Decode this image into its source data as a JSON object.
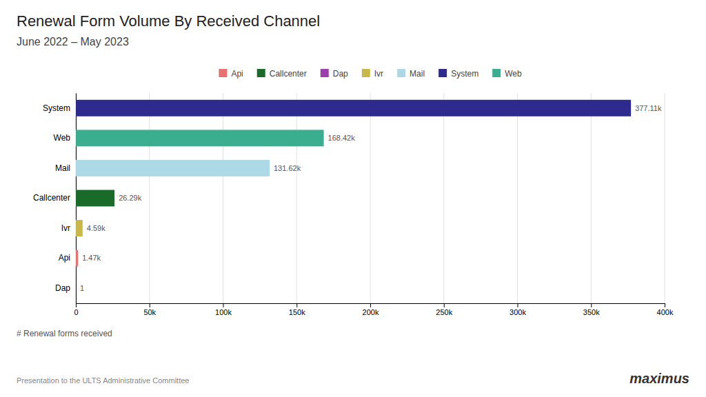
{
  "chart_data": {
    "type": "bar",
    "title": "Renewal Form Volume By Received Channel",
    "subtitle": "June 2022 – May 2023",
    "xlabel": "# Renewal forms received",
    "annotations": [
      "Presentation to the ULTS Administrative Committee",
      "maximus"
    ],
    "orientation": "horizontal",
    "categories": [
      "System",
      "Web",
      "Mail",
      "Callcenter",
      "Ivr",
      "Api",
      "Dap"
    ],
    "series": [
      {
        "name": "Api",
        "color": "#E87070",
        "values": [
          null,
          null,
          null,
          null,
          null,
          1470,
          null
        ],
        "value_labels": [
          null,
          null,
          null,
          null,
          null,
          "1.47k",
          null
        ]
      },
      {
        "name": "Callcenter",
        "color": "#1A6B2A",
        "values": [
          null,
          null,
          null,
          26290,
          null,
          null,
          null
        ],
        "value_labels": [
          null,
          null,
          null,
          "26.29k",
          null,
          null,
          null
        ]
      },
      {
        "name": "Dap",
        "color": "#9B3FAA",
        "values": [
          null,
          null,
          null,
          null,
          null,
          null,
          1
        ],
        "value_labels": [
          null,
          null,
          null,
          null,
          null,
          null,
          "1"
        ]
      },
      {
        "name": "Ivr",
        "color": "#C8B84A",
        "values": [
          null,
          null,
          null,
          null,
          4590,
          null,
          null
        ],
        "value_labels": [
          null,
          null,
          null,
          null,
          "4.59k",
          null,
          null
        ]
      },
      {
        "name": "Mail",
        "color": "#ADD8E6",
        "values": [
          null,
          null,
          131620,
          null,
          null,
          null,
          null
        ],
        "value_labels": [
          null,
          null,
          "131.62k",
          null,
          null,
          null,
          null
        ]
      },
      {
        "name": "System",
        "color": "#2E2B8E",
        "values": [
          377110,
          null,
          null,
          null,
          null,
          null,
          null
        ],
        "value_labels": [
          "377.11k",
          null,
          null,
          null,
          null,
          null,
          null
        ]
      },
      {
        "name": "Web",
        "color": "#3BAE8F",
        "values": [
          null,
          168420,
          null,
          null,
          null,
          null,
          null
        ],
        "value_labels": [
          null,
          "168.42k",
          null,
          null,
          null,
          null,
          null
        ]
      }
    ],
    "xlim": [
      0,
      400000
    ],
    "xticks": [
      0,
      {
        "value": 50000,
        "label": "50k"
      },
      {
        "value": 100000,
        "label": "100k"
      },
      {
        "value": 150000,
        "label": "150k"
      },
      {
        "value": 200000,
        "label": "200k"
      },
      {
        "value": 250000,
        "label": "250k"
      },
      {
        "value": 300000,
        "label": "300k"
      },
      {
        "value": 350000,
        "label": "350k"
      },
      {
        "value": 400000,
        "label": "400k"
      }
    ],
    "grid": true,
    "data_labels": true,
    "legend": "top"
  }
}
